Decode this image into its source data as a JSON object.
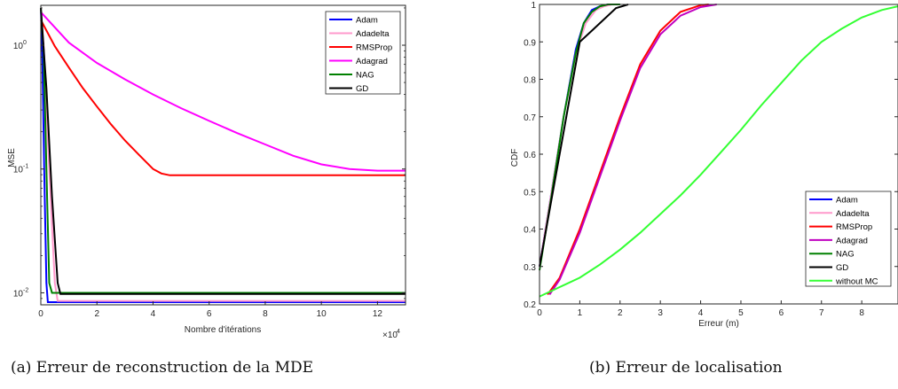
{
  "figure": {
    "caption_a": "(a) Erreur de reconstruction de la MDE",
    "caption_b": "(b) Erreur de localisation"
  },
  "chart_data": [
    {
      "type": "line",
      "xlabel": "Nombre d'itérations",
      "ylabel": "MSE",
      "x_scale_label": "×10",
      "x_scale_exp": "4",
      "xlim": [
        0,
        13
      ],
      "ylim": [
        0.008,
        2.1
      ],
      "yscale": "log",
      "xticks": [
        0,
        2,
        4,
        6,
        8,
        10,
        12
      ],
      "xtick_labels": [
        "0",
        "2",
        "4",
        "6",
        "8",
        "10",
        "12"
      ],
      "yticks": [
        0.01,
        0.1,
        1
      ],
      "ytick_labels": [
        "10",
        "10",
        "10"
      ],
      "ytick_exps": [
        "-2",
        "-1",
        "0"
      ],
      "legend": "top-right",
      "series": [
        {
          "name": "Adam",
          "color": "#0000ff",
          "x": [
            0,
            0.05,
            0.12,
            0.2,
            0.25,
            13
          ],
          "y": [
            2.0,
            0.9,
            0.1,
            0.012,
            0.0084,
            0.0084
          ]
        },
        {
          "name": "Adadelta",
          "color": "#ff99cc",
          "x": [
            0,
            0.1,
            0.3,
            0.5,
            0.6,
            13
          ],
          "y": [
            2.0,
            1.0,
            0.1,
            0.012,
            0.0086,
            0.0086
          ]
        },
        {
          "name": "RMSProp",
          "color": "#ff0000",
          "x": [
            0,
            0.5,
            1,
            1.5,
            2,
            2.5,
            3,
            3.5,
            4,
            4.3,
            4.6,
            5,
            13
          ],
          "y": [
            1.6,
            0.98,
            0.66,
            0.45,
            0.32,
            0.23,
            0.17,
            0.13,
            0.1,
            0.092,
            0.089,
            0.089,
            0.089
          ]
        },
        {
          "name": "Adagrad",
          "color": "#ff00ff",
          "x": [
            0,
            1,
            2,
            3,
            4,
            5,
            6,
            7,
            8,
            9,
            10,
            11,
            12,
            13
          ],
          "y": [
            1.85,
            1.05,
            0.72,
            0.53,
            0.4,
            0.31,
            0.245,
            0.195,
            0.158,
            0.128,
            0.109,
            0.1,
            0.097,
            0.097
          ]
        },
        {
          "name": "NAG",
          "color": "#008000",
          "x": [
            0,
            0.1,
            0.2,
            0.3,
            0.4,
            13
          ],
          "y": [
            2.0,
            0.9,
            0.1,
            0.012,
            0.01,
            0.01
          ]
        },
        {
          "name": "GD",
          "color": "#000000",
          "x": [
            0,
            0.2,
            0.4,
            0.6,
            0.7,
            13
          ],
          "y": [
            2.0,
            0.45,
            0.06,
            0.012,
            0.0098,
            0.0098
          ]
        }
      ]
    },
    {
      "type": "line",
      "xlabel": "Erreur (m)",
      "ylabel": "CDF",
      "xlim": [
        0,
        8.9
      ],
      "ylim": [
        0.2,
        1
      ],
      "xticks": [
        0,
        1,
        2,
        3,
        4,
        5,
        6,
        7,
        8
      ],
      "xtick_labels": [
        "0",
        "1",
        "2",
        "3",
        "4",
        "5",
        "6",
        "7",
        "8"
      ],
      "yticks": [
        0.2,
        0.3,
        0.4,
        0.5,
        0.6,
        0.7,
        0.8,
        0.9,
        1
      ],
      "ytick_labels": [
        "0.2",
        "0.3",
        "0.4",
        "0.5",
        "0.6",
        "0.7",
        "0.8",
        "0.9",
        "1"
      ],
      "legend": "bottom-right",
      "series": [
        {
          "name": "Adam",
          "color": "#0000ff",
          "x": [
            0,
            0.3,
            0.6,
            0.9,
            1.1,
            1.3,
            1.5,
            1.7,
            2.0
          ],
          "y": [
            0.3,
            0.5,
            0.7,
            0.88,
            0.95,
            0.985,
            0.995,
            1.0,
            1.0
          ]
        },
        {
          "name": "Adadelta",
          "color": "#ff99cc",
          "x": [
            0,
            0.3,
            0.6,
            0.9,
            1.15,
            1.4,
            1.6,
            1.8,
            2.0
          ],
          "y": [
            0.3,
            0.5,
            0.7,
            0.87,
            0.95,
            0.985,
            0.995,
            1.0,
            1.0
          ]
        },
        {
          "name": "RMSProp",
          "color": "#ff0000",
          "x": [
            0.2,
            0.5,
            1,
            1.5,
            2,
            2.5,
            3,
            3.5,
            4,
            4.2
          ],
          "y": [
            0.225,
            0.27,
            0.4,
            0.55,
            0.7,
            0.84,
            0.93,
            0.98,
            0.998,
            1.0
          ]
        },
        {
          "name": "Adagrad",
          "color": "#c000c0",
          "x": [
            0.25,
            0.5,
            1,
            1.5,
            2,
            2.5,
            3,
            3.5,
            4,
            4.4
          ],
          "y": [
            0.225,
            0.265,
            0.39,
            0.54,
            0.69,
            0.83,
            0.92,
            0.97,
            0.993,
            1.0
          ]
        },
        {
          "name": "NAG",
          "color": "#008000",
          "x": [
            0,
            0.3,
            0.6,
            0.9,
            1.1,
            1.3,
            1.5,
            1.7,
            2.0
          ],
          "y": [
            0.29,
            0.49,
            0.7,
            0.87,
            0.95,
            0.98,
            0.995,
            1.0,
            1.0
          ]
        },
        {
          "name": "GD",
          "color": "#000000",
          "x": [
            0,
            0.25,
            0.5,
            0.75,
            1,
            1.3,
            1.6,
            1.9,
            2.2
          ],
          "y": [
            0.3,
            0.45,
            0.6,
            0.75,
            0.9,
            0.93,
            0.96,
            0.99,
            1.0
          ]
        },
        {
          "name": "without MC",
          "color": "#33ff33",
          "x": [
            0,
            0.5,
            1,
            1.5,
            2,
            2.5,
            3,
            3.5,
            4,
            4.5,
            5,
            5.5,
            6,
            6.5,
            7,
            7.5,
            8,
            8.5,
            8.9
          ],
          "y": [
            0.22,
            0.245,
            0.27,
            0.305,
            0.345,
            0.39,
            0.44,
            0.49,
            0.545,
            0.605,
            0.665,
            0.73,
            0.79,
            0.85,
            0.9,
            0.935,
            0.965,
            0.985,
            0.995
          ]
        }
      ]
    }
  ]
}
